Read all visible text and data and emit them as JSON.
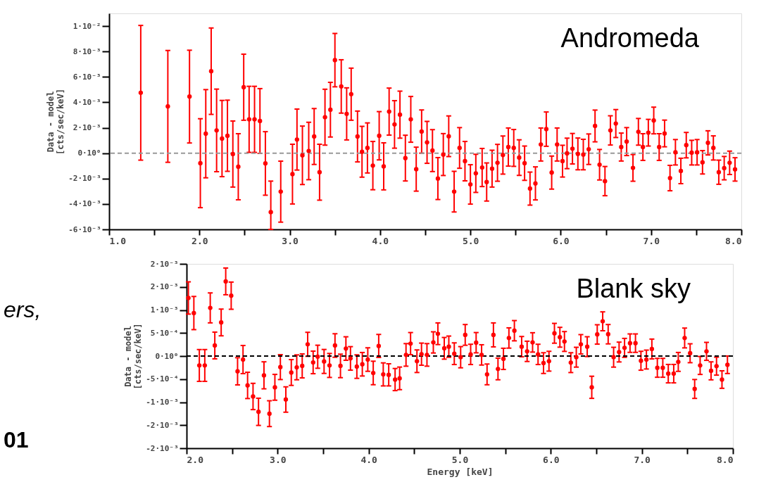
{
  "chart_data": [
    {
      "type": "scatter",
      "title": "Andromeda",
      "ylabel": "Data - model\n[cts/sec/keV]",
      "color": "#ff0000",
      "marker": "circle",
      "grid": false,
      "xlim": [
        1,
        8
      ],
      "ylim": [
        -0.006,
        0.011
      ],
      "xticks": [
        {
          "value": 1,
          "label": "1.0"
        },
        {
          "value": 1.5,
          "label": null
        },
        {
          "value": 2,
          "label": "2.0"
        },
        {
          "value": 2.5,
          "label": null
        },
        {
          "value": 3,
          "label": "3.0"
        },
        {
          "value": 3.5,
          "label": null
        },
        {
          "value": 4,
          "label": "4.0"
        },
        {
          "value": 4.5,
          "label": null
        },
        {
          "value": 5,
          "label": "5.0"
        },
        {
          "value": 5.5,
          "label": null
        },
        {
          "value": 6,
          "label": "6.0"
        },
        {
          "value": 6.5,
          "label": null
        },
        {
          "value": 7,
          "label": "7.0"
        },
        {
          "value": 7.5,
          "label": null
        },
        {
          "value": 8,
          "label": "8.0"
        }
      ],
      "yticks": [
        {
          "value": 0.01,
          "label": "1·10⁻²"
        },
        {
          "value": 0.008,
          "label": "8·10⁻³"
        },
        {
          "value": 0.006,
          "label": "6·10⁻³"
        },
        {
          "value": 0.004,
          "label": "4·10⁻³"
        },
        {
          "value": 0.002,
          "label": "2·10⁻³"
        },
        {
          "value": 0,
          "label": "0·10⁰"
        },
        {
          "value": -0.002,
          "label": "-2·10⁻³"
        },
        {
          "value": -0.004,
          "label": "-4·10⁻³"
        },
        {
          "value": -0.006,
          "label": "-6·10⁻³"
        }
      ],
      "ref_lines": [
        {
          "axis": "y",
          "value": 0,
          "line_style": "dashed",
          "color": "#999999"
        }
      ],
      "x": [
        1.35,
        1.65,
        1.89,
        2.01,
        2.07,
        2.13,
        2.19,
        2.25,
        2.31,
        2.37,
        2.43,
        2.49,
        2.55,
        2.61,
        2.67,
        2.73,
        2.79,
        2.9,
        3.03,
        3.08,
        3.14,
        3.21,
        3.27,
        3.33,
        3.39,
        3.45,
        3.5,
        3.57,
        3.63,
        3.68,
        3.75,
        3.8,
        3.86,
        3.92,
        3.99,
        4.04,
        4.1,
        4.16,
        4.22,
        4.28,
        4.34,
        4.4,
        4.46,
        4.52,
        4.58,
        4.64,
        4.7,
        4.76,
        4.82,
        4.88,
        4.94,
        5.0,
        5.06,
        5.13,
        5.18,
        5.24,
        5.3,
        5.36,
        5.42,
        5.48,
        5.54,
        5.6,
        5.66,
        5.72,
        5.78,
        5.84,
        5.9,
        5.96,
        6.02,
        6.07,
        6.13,
        6.19,
        6.25,
        6.31,
        6.38,
        6.43,
        6.49,
        6.55,
        6.61,
        6.67,
        6.73,
        6.8,
        6.86,
        6.91,
        6.97,
        7.03,
        7.09,
        7.15,
        7.21,
        7.27,
        7.33,
        7.39,
        7.45,
        7.51,
        7.57,
        7.63,
        7.69,
        7.75,
        7.81,
        7.87,
        7.93
      ],
      "values": [
        0.00475,
        0.00368,
        0.00445,
        -0.00079,
        0.00153,
        0.00645,
        0.00179,
        0.00115,
        0.00137,
        -7e-05,
        -0.00107,
        0.00519,
        0.00266,
        0.00266,
        0.00253,
        -0.00081,
        -0.00464,
        -0.00303,
        -0.00165,
        0.00107,
        -0.00017,
        0.00017,
        0.00131,
        -0.0015,
        0.00283,
        0.00342,
        0.00732,
        0.00525,
        0.00309,
        0.00464,
        0.00131,
        0.00011,
        0.00041,
        -0.00098,
        0.00137,
        -0.00104,
        0.00327,
        0.00226,
        0.00303,
        -0.00039,
        0.00266,
        -0.00126,
        0.0017,
        0.00085,
        0.0002,
        -0.002,
        -0.00011,
        0.00133,
        -0.00303,
        0.00041,
        -0.00063,
        -0.00246,
        -0.00159,
        -0.00113,
        -0.00227,
        -0.00122,
        -0.00076,
        -0.00015,
        0.00048,
        0.00041,
        -0.00035,
        -0.00079,
        -0.00279,
        -0.00238,
        0.00068,
        0.00189,
        -0.00153,
        0.00068,
        -0.00063,
        -2e-05,
        0.00035,
        -6e-05,
        -0.00011,
        0.00031,
        0.00214,
        -0.00091,
        -0.0022,
        0.00179,
        0.00233,
        0.00048,
        0.00091,
        -0.00116,
        0.00168,
        0.00048,
        0.00161,
        0.00257,
        0.00048,
        0.00155,
        -0.00196,
        7e-05,
        -0.0014,
        0.00063,
        4e-05,
        7e-05,
        -0.00072,
        0.00081,
        0.00041,
        -0.0015,
        -0.00118,
        -0.00076,
        -0.00128
      ],
      "errors": [
        0.0053,
        0.0044,
        0.00365,
        0.0035,
        0.00347,
        0.0034,
        0.00325,
        0.003,
        0.0028,
        0.0026,
        0.0026,
        0.0026,
        0.0026,
        0.0026,
        0.00255,
        0.0025,
        [
          -0.006,
          -0.0022
        ],
        0.0024,
        0.00235,
        0.0024,
        0.0023,
        0.00226,
        0.0022,
        0.0022,
        0.0022,
        0.00215,
        0.0021,
        0.0021,
        0.00205,
        0.00205,
        0.002,
        0.002,
        0.00197,
        0.0019,
        0.0019,
        0.00185,
        0.00185,
        0.00187,
        0.00185,
        0.0018,
        0.0018,
        0.00173,
        0.0017,
        0.00165,
        0.00165,
        0.00165,
        0.00165,
        0.0016,
        0.0016,
        0.0016,
        0.00155,
        0.00155,
        0.0015,
        0.0015,
        0.0015,
        0.00145,
        0.00145,
        0.0015,
        0.0015,
        0.00145,
        0.0014,
        0.00135,
        0.0013,
        0.0013,
        0.0013,
        0.00135,
        0.0013,
        0.0013,
        0.00125,
        0.0012,
        0.0012,
        0.00125,
        0.0012,
        0.0012,
        0.00125,
        0.0012,
        0.00115,
        0.00115,
        0.0011,
        0.0011,
        0.0011,
        0.00105,
        0.00105,
        0.00105,
        0.00105,
        0.00105,
        0.00105,
        0.00105,
        0.001,
        0.001,
        0.001,
        0.001,
        0.00097,
        0.001,
        0.00092,
        0.00095,
        0.00095,
        0.00095,
        0.00092,
        0.00092,
        0.00092
      ]
    },
    {
      "type": "scatter",
      "title": "Blank sky",
      "xlabel": "Energy [keV]",
      "ylabel": "Data - model\n[cts/sec/keV]",
      "color": "#ff0000",
      "marker": "circle",
      "grid": false,
      "annotations": [
        "ers,",
        "01"
      ],
      "xlim": [
        2,
        8
      ],
      "ylim": [
        -0.002,
        0.002
      ],
      "xticks": [
        {
          "value": 2,
          "label": "2.0"
        },
        {
          "value": 2.5,
          "label": null
        },
        {
          "value": 3,
          "label": "3.0"
        },
        {
          "value": 3.5,
          "label": null
        },
        {
          "value": 4,
          "label": "4.0"
        },
        {
          "value": 4.5,
          "label": null
        },
        {
          "value": 5,
          "label": "5.0"
        },
        {
          "value": 5.5,
          "label": null
        },
        {
          "value": 6,
          "label": "6.0"
        },
        {
          "value": 6.5,
          "label": null
        },
        {
          "value": 7,
          "label": "7.0"
        },
        {
          "value": 7.5,
          "label": null
        },
        {
          "value": 8,
          "label": "8.0"
        }
      ],
      "yticks": [
        {
          "value": 0.002,
          "label": "2·10⁻³"
        },
        {
          "value": 0.0015,
          "label": "2·10⁻³"
        },
        {
          "value": 0.001,
          "label": "1·10⁻³"
        },
        {
          "value": 0.0005,
          "label": "5·10⁻⁴"
        },
        {
          "value": 0,
          "label": "0·10⁰"
        },
        {
          "value": -0.0005,
          "label": "-5·10⁻⁴"
        },
        {
          "value": -0.001,
          "label": "-1·10⁻³"
        },
        {
          "value": -0.0015,
          "label": "-2·10⁻³"
        },
        {
          "value": -0.002,
          "label": "-2·10⁻³"
        }
      ],
      "ref_lines": [
        {
          "axis": "y",
          "value": 0,
          "line_style": "dashed",
          "color": "#000000"
        }
      ],
      "x": [
        2.02,
        2.08,
        2.14,
        2.2,
        2.26,
        2.31,
        2.38,
        2.43,
        2.49,
        2.56,
        2.62,
        2.67,
        2.73,
        2.79,
        2.85,
        2.91,
        2.97,
        3.03,
        3.09,
        3.15,
        3.21,
        3.27,
        3.33,
        3.39,
        3.44,
        3.51,
        3.57,
        3.63,
        3.69,
        3.75,
        3.8,
        3.87,
        3.93,
        3.99,
        4.05,
        4.11,
        4.16,
        4.22,
        4.29,
        4.34,
        4.41,
        4.46,
        4.53,
        4.58,
        4.64,
        4.71,
        4.76,
        4.83,
        4.88,
        4.94,
        5.01,
        5.06,
        5.12,
        5.18,
        5.24,
        5.3,
        5.37,
        5.42,
        5.48,
        5.54,
        5.6,
        5.68,
        5.74,
        5.8,
        5.86,
        5.92,
        5.98,
        6.04,
        6.1,
        6.15,
        6.22,
        6.28,
        6.33,
        6.4,
        6.45,
        6.51,
        6.57,
        6.63,
        6.69,
        6.75,
        6.81,
        6.87,
        6.93,
        6.99,
        7.05,
        7.11,
        7.17,
        7.23,
        7.29,
        7.35,
        7.4,
        7.47,
        7.53,
        7.58,
        7.64,
        7.71,
        7.76,
        7.82,
        7.88,
        7.94
      ],
      "values": [
        0.00126,
        0.000933,
        -0.000204,
        -0.000204,
        0.001045,
        0.000229,
        0.000729,
        0.00162,
        0.00131,
        -0.000331,
        -7.6e-05,
        -0.000637,
        -0.000877,
        -0.00121,
        -0.000418,
        -0.00125,
        -0.000678,
        -0.00024,
        -0.000943,
        -0.000357,
        -0.000245,
        -0.000214,
        0.000255,
        -0.000138,
        -1.5e-05,
        -0.000117,
        -0.000204,
        0.000229,
        -0.000214,
        0.000163,
        -5.1e-05,
        -0.000229,
        -0.000178,
        -7.6e-05,
        -0.000367,
        0.000219,
        -0.000398,
        -0.000408,
        -0.00051,
        -0.000484,
        2.5e-05,
        0.00027,
        -0.000112,
        4.1e-05,
        2.5e-05,
        0.000296,
        0.000484,
        0.000168,
        0.000204,
        5.1e-05,
        -2.5e-05,
        0.000459,
        3.6e-05,
        0.00029,
        2.5e-05,
        -0.000398,
        0.000459,
        -0.00028,
        -6.1e-05,
        0.000392,
        0.00055,
        0.000204,
        0.000102,
        0.000296,
        3.6e-05,
        -0.000153,
        -0.000112,
        0.000494,
        0.000408,
        0.000316,
        -0.000143,
        -2.5e-05,
        0.000255,
        0.000204,
        -0.000678,
        0.000469,
        0.000754,
        0.000474,
        -2.5e-05,
        8.7e-05,
        0.000178,
        0.00028,
        0.00028,
        -0.000102,
        -7.6e-05,
        0.000153,
        -0.000255,
        -0.000255,
        -0.000382,
        -0.000382,
        -0.000127,
        0.000392,
        6.1e-05,
        -0.000714,
        -0.000204,
        0.000102,
        -0.000321,
        -0.000219,
        -0.00051,
        -0.000189
      ],
      "errors": [
        0.00035,
        0.00036,
        0.000345,
        0.000345,
        0.000325,
        0.00029,
        0.00029,
        0.00029,
        0.000295,
        0.000295,
        0.000305,
        0.000285,
        0.000285,
        0.000295,
        0.000293,
        0.00028,
        0.00028,
        0.00027,
        0.000275,
        0.00028,
        0.00027,
        0.00026,
        0.00026,
        0.000245,
        0.00025,
        0.00026,
        0.00026,
        0.000255,
        0.000255,
        0.000255,
        0.000255,
        0.000255,
        0.000255,
        0.000255,
        0.000255,
        0.00025,
        0.00025,
        0.00024,
        0.00024,
        0.000245,
        0.000245,
        0.00024,
        0.000245,
        0.00024,
        0.000245,
        0.00023,
        0.000235,
        0.000235,
        0.00023,
        0.000235,
        0.00023,
        0.000225,
        0.00022,
        0.00022,
        0.00022,
        0.000225,
        0.00026,
        0.000235,
        0.00023,
        0.00022,
        0.00022,
        0.00022,
        0.00022,
        0.00021,
        0.00022,
        0.000225,
        0.000215,
        0.000215,
        0.000215,
        0.000215,
        0.000215,
        0.000215,
        0.00021,
        0.000215,
        0.00024,
        0.00021,
        0.000205,
        0.00021,
        0.000215,
        0.000215,
        0.000205,
        0.0002,
        0.0002,
        0.000205,
        0.000205,
        0.000215,
        0.000205,
        0.000205,
        0.0002,
        0.0002,
        0.000205,
        0.000215,
        0.000205,
        0.000205,
        0.000195,
        0.000195,
        0.000195,
        0.000195,
        0.00019,
        0.00019
      ]
    }
  ]
}
